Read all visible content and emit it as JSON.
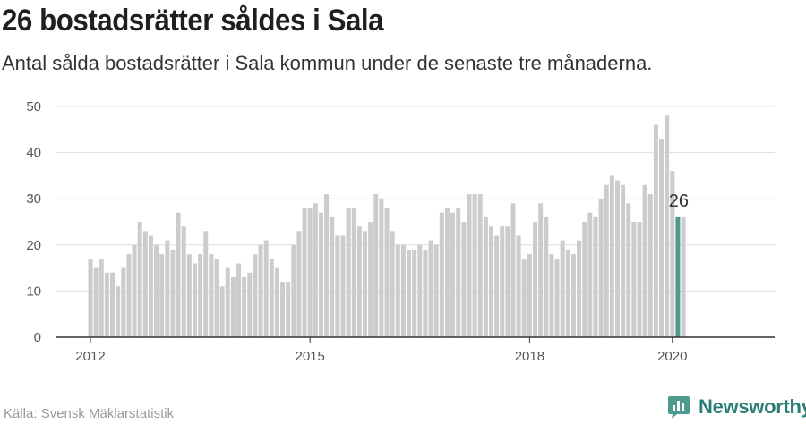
{
  "header": {
    "title": "26 bostadsrätter såldes i Sala",
    "subtitle": "Antal sålda bostadsrätter i Sala kommun under de senaste tre månaderna."
  },
  "footer": {
    "source": "Källa: Svensk Mäklarstatistik",
    "brand": "Newsworthy"
  },
  "colors": {
    "bar": "#cccccc",
    "highlight": "#4e9a8f",
    "axis": "#333333",
    "grid": "#dddddd"
  },
  "chart_data": {
    "type": "bar",
    "title": "26 bostadsrätter såldes i Sala",
    "ylim": [
      0,
      50
    ],
    "yticks": [
      0,
      10,
      20,
      30,
      40,
      50
    ],
    "grid": true,
    "x_tick_labels": [
      {
        "label": "2012",
        "index": 0
      },
      {
        "label": "2015",
        "index": 40
      },
      {
        "label": "2018",
        "index": 80
      },
      {
        "label": "2020",
        "index": 106
      }
    ],
    "values": [
      17,
      15,
      17,
      14,
      14,
      11,
      15,
      18,
      20,
      25,
      23,
      22,
      20,
      18,
      21,
      19,
      27,
      24,
      18,
      16,
      18,
      23,
      18,
      17,
      11,
      15,
      13,
      16,
      13,
      14,
      18,
      20,
      21,
      17,
      15,
      12,
      12,
      20,
      23,
      28,
      28,
      29,
      27,
      31,
      26,
      22,
      22,
      28,
      28,
      24,
      23,
      25,
      31,
      30,
      28,
      23,
      20,
      20,
      19,
      19,
      20,
      19,
      21,
      20,
      27,
      28,
      27,
      28,
      25,
      31,
      31,
      31,
      26,
      24,
      22,
      24,
      24,
      29,
      22,
      17,
      18,
      25,
      29,
      26,
      18,
      17,
      21,
      19,
      18,
      21,
      25,
      27,
      26,
      30,
      33,
      35,
      34,
      33,
      29,
      25,
      25,
      33,
      31,
      46,
      43,
      48,
      36,
      26
    ],
    "highlight": {
      "index": 107,
      "value": 26,
      "label": "26"
    }
  }
}
